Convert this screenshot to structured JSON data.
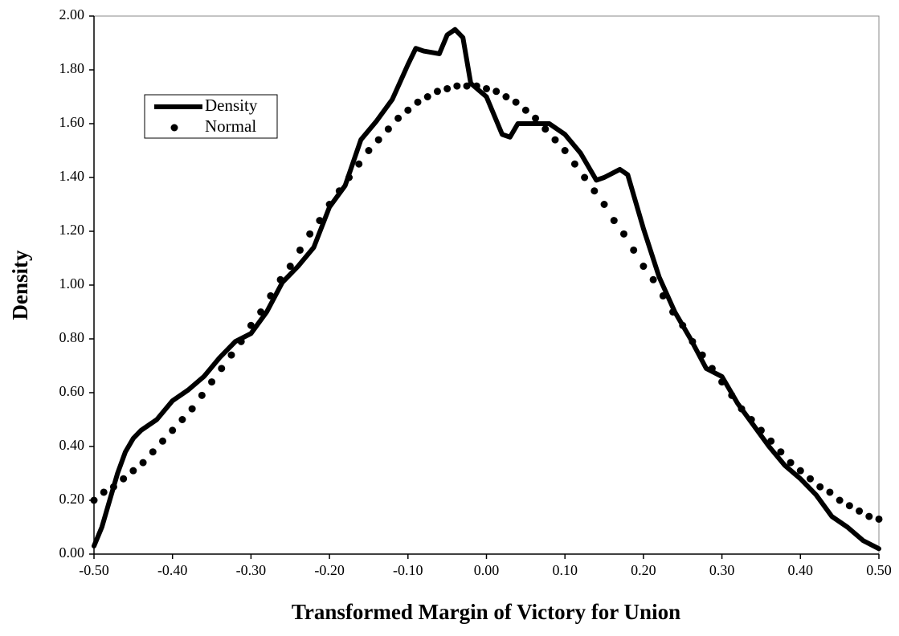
{
  "chart_data": {
    "type": "line",
    "xlabel": "Transformed Margin of Victory for Union",
    "ylabel": "Density",
    "xlim": [
      -0.5,
      0.5
    ],
    "ylim": [
      0,
      2
    ],
    "xticks": [
      {
        "value": -0.5,
        "label": "-0.50"
      },
      {
        "value": -0.4,
        "label": "-0.40"
      },
      {
        "value": -0.3,
        "label": "-0.30"
      },
      {
        "value": -0.2,
        "label": "-0.20"
      },
      {
        "value": -0.1,
        "label": "-0.10"
      },
      {
        "value": 0,
        "label": "0.00"
      },
      {
        "value": 0.1,
        "label": "0.10"
      },
      {
        "value": 0.2,
        "label": "0.20"
      },
      {
        "value": 0.3,
        "label": "0.30"
      },
      {
        "value": 0.4,
        "label": "0.40"
      },
      {
        "value": 0.5,
        "label": "0.50"
      }
    ],
    "yticks": [
      {
        "value": 0,
        "label": "0.00"
      },
      {
        "value": 0.2,
        "label": "0.20"
      },
      {
        "value": 0.4,
        "label": "0.40"
      },
      {
        "value": 0.6,
        "label": "0.60"
      },
      {
        "value": 0.8,
        "label": "0.80"
      },
      {
        "value": 1,
        "label": "1.00"
      },
      {
        "value": 1.2,
        "label": "1.20"
      },
      {
        "value": 1.4,
        "label": "1.40"
      },
      {
        "value": 1.6,
        "label": "1.60"
      },
      {
        "value": 1.8,
        "label": "1.80"
      },
      {
        "value": 2,
        "label": "2.00"
      }
    ],
    "legend": "upper left",
    "series": [
      {
        "name": "Density",
        "color": "#000000",
        "style": "solid",
        "x": [
          -0.5,
          -0.49,
          -0.48,
          -0.47,
          -0.46,
          -0.45,
          -0.44,
          -0.42,
          -0.4,
          -0.38,
          -0.36,
          -0.34,
          -0.32,
          -0.3,
          -0.28,
          -0.26,
          -0.24,
          -0.22,
          -0.2,
          -0.18,
          -0.16,
          -0.14,
          -0.12,
          -0.1,
          -0.09,
          -0.08,
          -0.06,
          -0.05,
          -0.04,
          -0.03,
          -0.02,
          0,
          0.02,
          0.03,
          0.04,
          0.06,
          0.08,
          0.1,
          0.12,
          0.14,
          0.15,
          0.17,
          0.18,
          0.2,
          0.22,
          0.24,
          0.26,
          0.28,
          0.3,
          0.32,
          0.34,
          0.36,
          0.38,
          0.4,
          0.42,
          0.44,
          0.46,
          0.48,
          0.5
        ],
        "values": [
          0.03,
          0.1,
          0.2,
          0.3,
          0.38,
          0.43,
          0.46,
          0.5,
          0.57,
          0.61,
          0.66,
          0.73,
          0.79,
          0.82,
          0.9,
          1.01,
          1.07,
          1.14,
          1.29,
          1.37,
          1.54,
          1.61,
          1.69,
          1.82,
          1.88,
          1.87,
          1.86,
          1.93,
          1.95,
          1.92,
          1.75,
          1.7,
          1.56,
          1.55,
          1.6,
          1.6,
          1.6,
          1.56,
          1.49,
          1.39,
          1.4,
          1.43,
          1.41,
          1.21,
          1.03,
          0.9,
          0.8,
          0.69,
          0.66,
          0.56,
          0.48,
          0.4,
          0.33,
          0.28,
          0.22,
          0.14,
          0.1,
          0.05,
          0.02
        ]
      },
      {
        "name": "Normal",
        "color": "#000000",
        "style": "dots",
        "x": [
          -0.5,
          -0.4875,
          -0.475,
          -0.4625,
          -0.45,
          -0.4375,
          -0.425,
          -0.4125,
          -0.4,
          -0.3875,
          -0.375,
          -0.3625,
          -0.35,
          -0.3375,
          -0.325,
          -0.3125,
          -0.3,
          -0.2875,
          -0.275,
          -0.2625,
          -0.25,
          -0.2375,
          -0.225,
          -0.2125,
          -0.2,
          -0.1875,
          -0.175,
          -0.1625,
          -0.15,
          -0.1375,
          -0.125,
          -0.1125,
          -0.1,
          -0.0875,
          -0.075,
          -0.0625,
          -0.05,
          -0.0375,
          -0.025,
          -0.0125,
          0,
          0.0125,
          0.025,
          0.0375,
          0.05,
          0.0625,
          0.075,
          0.0875,
          0.1,
          0.1125,
          0.125,
          0.1375,
          0.15,
          0.1625,
          0.175,
          0.1875,
          0.2,
          0.2125,
          0.225,
          0.2375,
          0.25,
          0.2625,
          0.275,
          0.2875,
          0.3,
          0.3125,
          0.325,
          0.3375,
          0.35,
          0.3625,
          0.375,
          0.3875,
          0.4,
          0.4125,
          0.425,
          0.4375,
          0.45,
          0.4625,
          0.475,
          0.4875,
          0.5
        ],
        "values": [
          0.2,
          0.23,
          0.25,
          0.28,
          0.31,
          0.34,
          0.38,
          0.42,
          0.46,
          0.5,
          0.54,
          0.59,
          0.64,
          0.69,
          0.74,
          0.79,
          0.85,
          0.9,
          0.96,
          1.02,
          1.07,
          1.13,
          1.19,
          1.24,
          1.3,
          1.35,
          1.4,
          1.45,
          1.5,
          1.54,
          1.58,
          1.62,
          1.65,
          1.68,
          1.7,
          1.72,
          1.73,
          1.74,
          1.74,
          1.74,
          1.73,
          1.72,
          1.7,
          1.68,
          1.65,
          1.62,
          1.58,
          1.54,
          1.5,
          1.45,
          1.4,
          1.35,
          1.3,
          1.24,
          1.19,
          1.13,
          1.07,
          1.02,
          0.96,
          0.9,
          0.85,
          0.79,
          0.74,
          0.69,
          0.64,
          0.59,
          0.54,
          0.5,
          0.46,
          0.42,
          0.38,
          0.34,
          0.31,
          0.28,
          0.25,
          0.23,
          0.2,
          0.18,
          0.16,
          0.14,
          0.13
        ]
      }
    ]
  }
}
